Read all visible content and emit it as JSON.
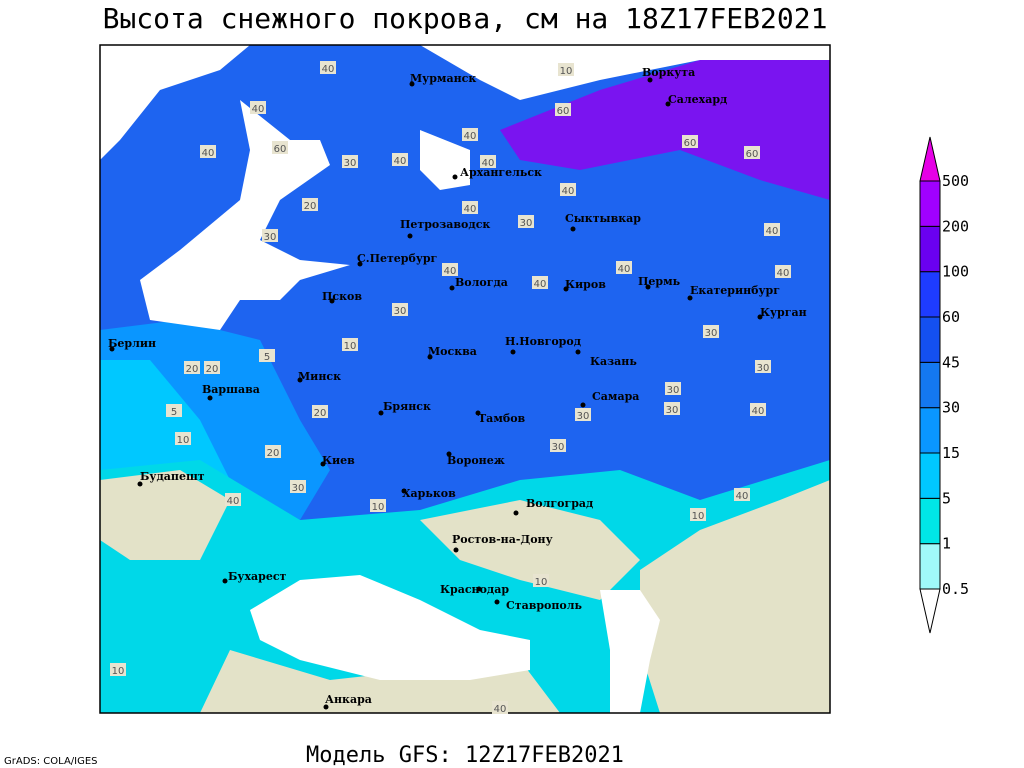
{
  "title": "Высота снежного покрова, см на 18Z17FEB2021",
  "footer": "Модель GFS: 12Z17FEB2021",
  "credit": "GrADS: COLA/IGES",
  "cities": [
    "Мурманск",
    "Воркута",
    "Салехард",
    "Архангельск",
    "Петрозаводск",
    "Сыктывкар",
    "С.Петербург",
    "Вологда",
    "Киров",
    "Пермь",
    "Екатеринбург",
    "Курган",
    "Псков",
    "Берлин",
    "Н.Новгород",
    "Москва",
    "Казань",
    "Варшава",
    "Минск",
    "Самара",
    "Брянск",
    "Тамбов",
    "Киев",
    "Воронеж",
    "Будапешт",
    "Харьков",
    "Волгоград",
    "Ростов-на-Дону",
    "Бухарест",
    "Краснодар",
    "Ставрополь",
    "Анкара"
  ],
  "contour_labels": [
    40,
    40,
    10,
    40,
    60,
    60,
    40,
    30,
    40,
    40,
    40,
    60,
    60,
    40,
    30,
    20,
    30,
    40,
    30,
    40,
    40,
    40,
    40,
    30,
    20,
    20,
    5,
    10,
    20,
    30,
    30,
    30,
    30,
    30,
    40,
    40,
    20,
    10,
    5,
    30,
    40,
    10,
    10,
    10,
    10,
    40
  ],
  "legend": {
    "levels": [
      0.5,
      1,
      5,
      15,
      30,
      45,
      60,
      100,
      200,
      500
    ],
    "colors": [
      "#ffffff",
      "#a0fafa",
      "#00e6e6",
      "#00c8ff",
      "#0a96ff",
      "#1478f0",
      "#1450f0",
      "#1e3cff",
      "#6a00f0",
      "#a000ff",
      "#e600e6"
    ]
  }
}
